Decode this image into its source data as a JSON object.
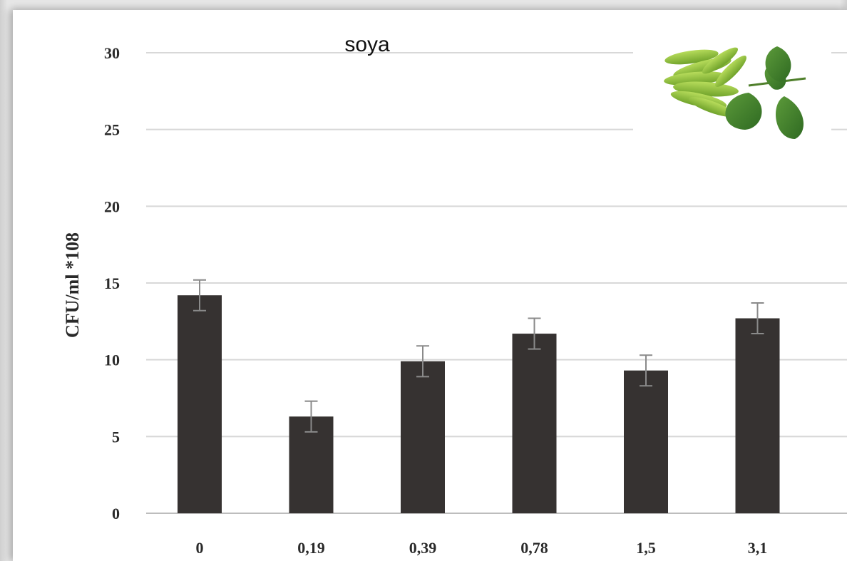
{
  "chart_data": {
    "type": "bar",
    "title": "soya",
    "xlabel": "",
    "ylabel": "CFU/ml *108",
    "categories": [
      "0",
      "0,19",
      "0,39",
      "0,78",
      "1,5",
      "3,1"
    ],
    "values": [
      14.2,
      6.3,
      9.9,
      11.7,
      9.3,
      12.7
    ],
    "errors": [
      1.0,
      1.0,
      1.0,
      1.0,
      1.0,
      1.0
    ],
    "ylim": [
      0,
      30
    ],
    "yticks": [
      "0",
      "5",
      "10",
      "15",
      "20",
      "25",
      "30"
    ],
    "grid": true,
    "legend": "none",
    "colors": {
      "bar": "#363231",
      "grid": "#d8d8d8",
      "error_bar": "#8a8a8a",
      "soy_pod": "#8fbf3a",
      "soy_leaf": "#3f7f2a"
    },
    "image": {
      "icon": "soybean-pods-and-leaves"
    }
  }
}
